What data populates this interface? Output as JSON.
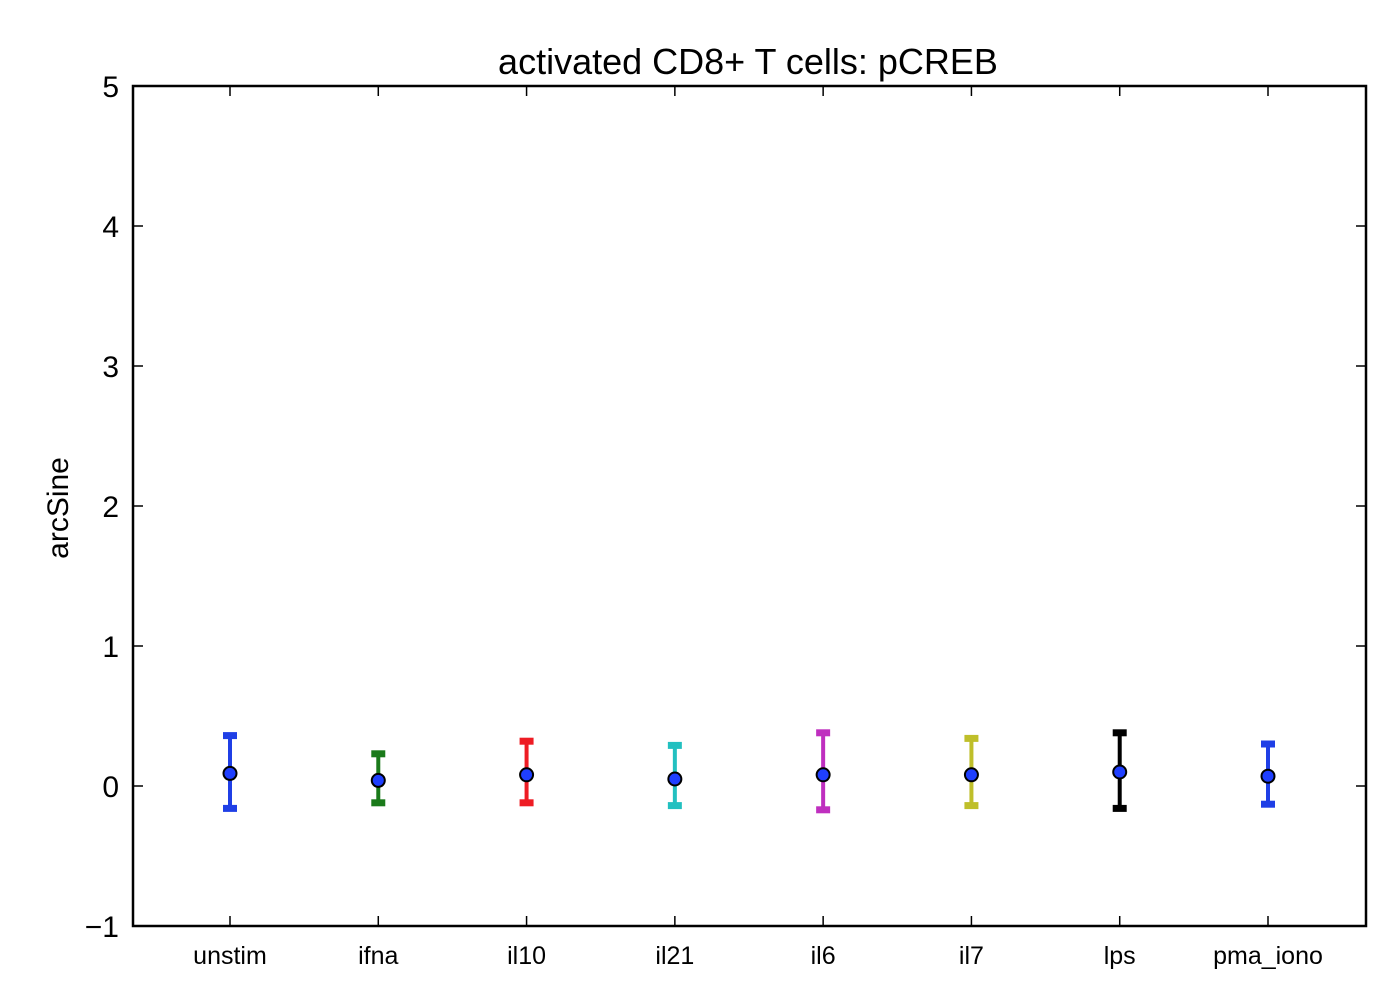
{
  "chart_data": {
    "type": "errorbar",
    "title": "activated CD8+ T cells: pCREB",
    "xlabel": "",
    "ylabel": "arcSine",
    "ylim": [
      -1,
      5
    ],
    "yticks": [
      {
        "value": -1,
        "label": "−1"
      },
      {
        "value": 0,
        "label": "0"
      },
      {
        "value": 1,
        "label": "1"
      },
      {
        "value": 2,
        "label": "2"
      },
      {
        "value": 3,
        "label": "3"
      },
      {
        "value": 4,
        "label": "4"
      },
      {
        "value": 5,
        "label": "5"
      }
    ],
    "grid": false,
    "marker_color": "#1f3fff",
    "categories": [
      "unstim",
      "ifna",
      "il10",
      "il21",
      "il6",
      "il7",
      "lps",
      "pma_iono"
    ],
    "points": [
      {
        "category": "unstim",
        "mean": 0.09,
        "lower": -0.16,
        "upper": 0.36,
        "color": "#1f3fe6"
      },
      {
        "category": "ifna",
        "mean": 0.04,
        "lower": -0.12,
        "upper": 0.23,
        "color": "#1a7a1a"
      },
      {
        "category": "il10",
        "mean": 0.08,
        "lower": -0.12,
        "upper": 0.32,
        "color": "#ee1c24"
      },
      {
        "category": "il21",
        "mean": 0.05,
        "lower": -0.14,
        "upper": 0.29,
        "color": "#22c0c0"
      },
      {
        "category": "il6",
        "mean": 0.08,
        "lower": -0.17,
        "upper": 0.38,
        "color": "#bf2fbf"
      },
      {
        "category": "il7",
        "mean": 0.08,
        "lower": -0.14,
        "upper": 0.34,
        "color": "#bfbf2a"
      },
      {
        "category": "lps",
        "mean": 0.1,
        "lower": -0.16,
        "upper": 0.38,
        "color": "#000000"
      },
      {
        "category": "pma_iono",
        "mean": 0.07,
        "lower": -0.13,
        "upper": 0.3,
        "color": "#1f3fe6"
      }
    ]
  }
}
